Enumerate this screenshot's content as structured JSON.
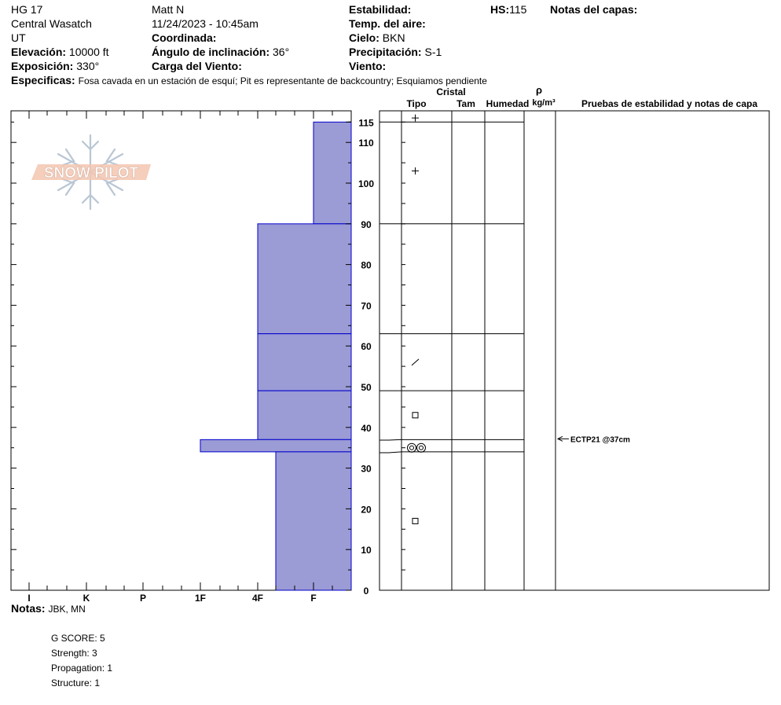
{
  "header": {
    "pit_name": "HG 17",
    "range": "Central Wasatch",
    "state": "UT",
    "elevation_label": "Elevación:",
    "elevation": "10000 ft",
    "aspect_label": "Exposición:",
    "aspect": "330°",
    "observer": "Matt N",
    "datetime": "11/24/2023 - 10:45am",
    "coordinates_label": "Coordinada:",
    "slope_label": "Ángulo de inclinación:",
    "slope": "36°",
    "wind_loading_label": "Carga del Viento:",
    "stability_label": "Estabilidad:",
    "air_temp_label": "Temp. del aire:",
    "sky_label": "Cielo:",
    "sky": "BKN",
    "precip_label": "Precipitación:",
    "precip": "S-1",
    "wind_label": "Viento:",
    "hs_label": "HS:",
    "hs": "115",
    "layer_notes_label": "Notas del capas:",
    "specifics_label": "Especificas:",
    "specifics": "Fosa cavada en un estación de esquí; Pit es representante de backcountry; Esquiamos pendiente"
  },
  "logo_text": "SNOW PILOT",
  "columns": {
    "crystal": "Cristal",
    "type": "Tipo",
    "size": "Tam",
    "moisture": "Humedad",
    "rho": "ρ",
    "density_unit": "kg/m³",
    "tests": "Pruebas de estabilidad y notas de capa"
  },
  "test_annotation": "ECTP21 @37cm",
  "notes": {
    "label": "Notas:",
    "text": "JBK, MN",
    "lines": [
      "G SCORE: 5",
      "Strength: 3",
      "Propagation: 1",
      "Structure: 1"
    ]
  },
  "colors": {
    "layer_fill": "#9b9bd6",
    "layer_line": "#0000cc"
  },
  "chart_data": {
    "type": "bar",
    "hand_hardness_scale": [
      "I",
      "K",
      "P",
      "1F",
      "4F",
      "F"
    ],
    "depth_ticks": [
      0,
      10,
      20,
      30,
      40,
      50,
      60,
      70,
      80,
      90,
      100,
      110,
      115
    ],
    "layers": [
      {
        "top": 115,
        "bottom": 90,
        "hardness": "F"
      },
      {
        "top": 90,
        "bottom": 63,
        "hardness": "4F"
      },
      {
        "top": 63,
        "bottom": 49,
        "hardness": "4F"
      },
      {
        "top": 49,
        "bottom": 37,
        "hardness": "4F"
      },
      {
        "top": 37,
        "bottom": 34,
        "hardness": "1F"
      },
      {
        "top": 34,
        "bottom": 0,
        "hardness": "4F-"
      }
    ],
    "grain_symbols": [
      {
        "height": 116,
        "symbol": "+"
      },
      {
        "height": 103,
        "symbol": "+"
      },
      {
        "height": 56,
        "symbol": "/"
      },
      {
        "height": 43,
        "symbol": "□"
      },
      {
        "height": 35,
        "symbol": "◎◎"
      },
      {
        "height": 17,
        "symbol": "□"
      }
    ],
    "stability_tests": [
      {
        "height": 37,
        "label": "ECTP21 @37cm"
      }
    ]
  }
}
